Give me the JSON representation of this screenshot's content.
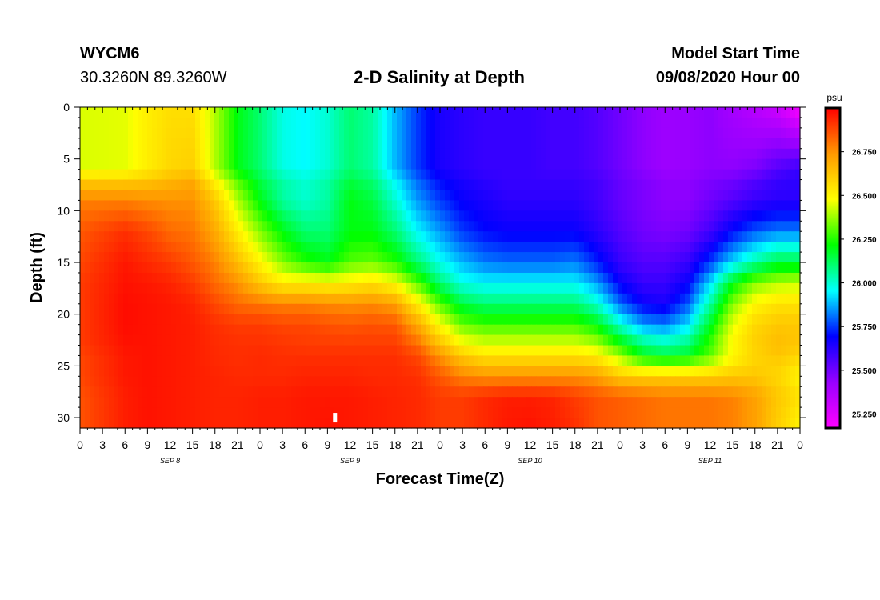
{
  "header": {
    "station": "WYCM6",
    "coordinates": "30.3260N 89.3260W",
    "title": "2-D Salinity at Depth",
    "model_start_label": "Model Start Time",
    "model_start_value": "09/08/2020 Hour 00"
  },
  "chart_data": {
    "type": "heatmap",
    "title": "2-D Salinity at Depth",
    "xlabel": "Forecast Time(Z)",
    "ylabel": "Depth (ft)",
    "x_unit": "hours from model start",
    "xlim": [
      0,
      96
    ],
    "ylim": [
      0,
      31
    ],
    "y_inverted": true,
    "x_tick_values": [
      0,
      3,
      6,
      9,
      12,
      15,
      18,
      21,
      24,
      27,
      30,
      33,
      36,
      39,
      42,
      45,
      48,
      51,
      54,
      57,
      60,
      63,
      66,
      69,
      72,
      75,
      78,
      81,
      84,
      87,
      90,
      93,
      96
    ],
    "x_tick_labels": [
      "0",
      "3",
      "6",
      "9",
      "12",
      "15",
      "18",
      "21",
      "0",
      "3",
      "6",
      "9",
      "12",
      "15",
      "18",
      "21",
      "0",
      "3",
      "6",
      "9",
      "12",
      "15",
      "18",
      "21",
      "0",
      "3",
      "6",
      "9",
      "12",
      "15",
      "18",
      "21",
      "0"
    ],
    "date_labels": [
      {
        "x": 12,
        "text": "SEP 8"
      },
      {
        "x": 36,
        "text": "SEP 9"
      },
      {
        "x": 60,
        "text": "SEP 10"
      },
      {
        "x": 84,
        "text": "SEP 11"
      }
    ],
    "y_ticks": [
      0,
      5,
      10,
      15,
      20,
      25,
      30
    ],
    "colorbar": {
      "unit": "psu",
      "range": [
        25.17,
        27.0
      ],
      "ticks": [
        25.25,
        25.5,
        25.75,
        26.0,
        26.25,
        26.5,
        26.75
      ],
      "tick_labels": [
        "25.250",
        "25.500",
        "25.750",
        "26.000",
        "26.250",
        "26.500",
        "26.750"
      ],
      "colors": [
        "#ff00ff",
        "#9900ff",
        "#0000ff",
        "#00ffff",
        "#00ff00",
        "#ffff00",
        "#ff9900",
        "#ff0000"
      ]
    },
    "marker": {
      "x": 34,
      "y": 30
    },
    "grid_values": {
      "times": [
        0,
        6,
        9,
        12,
        15,
        18,
        21,
        24,
        27,
        30,
        33,
        36,
        39,
        42,
        45,
        48,
        51,
        54,
        57,
        60,
        63,
        66,
        69,
        72,
        75,
        78,
        81,
        84,
        87,
        90,
        93,
        96
      ],
      "depths": [
        0,
        6,
        7,
        9,
        12,
        15,
        17,
        19,
        21,
        23,
        24,
        26,
        28,
        31
      ],
      "salinity": [
        [
          26.44,
          26.45,
          26.52,
          26.56,
          26.56,
          26.4,
          26.2,
          26.1,
          25.98,
          25.95,
          26.0,
          26.1,
          26.05,
          25.88,
          25.75,
          25.65,
          25.62,
          25.6,
          25.6,
          25.6,
          25.58,
          25.58,
          25.55,
          25.5,
          25.45,
          25.42,
          25.43,
          25.45,
          25.4,
          25.35,
          25.3,
          25.18
        ],
        [
          26.44,
          26.45,
          26.52,
          26.58,
          26.6,
          26.4,
          26.2,
          26.1,
          25.98,
          25.95,
          26.0,
          26.1,
          26.05,
          25.88,
          25.75,
          25.65,
          25.62,
          25.6,
          25.6,
          25.6,
          25.58,
          25.58,
          25.55,
          25.5,
          25.45,
          25.42,
          25.43,
          25.45,
          25.45,
          25.48,
          25.55,
          25.6
        ],
        [
          26.6,
          26.6,
          26.62,
          26.66,
          26.7,
          26.5,
          26.3,
          26.15,
          26.05,
          26.0,
          26.05,
          26.15,
          26.1,
          25.95,
          25.8,
          25.7,
          25.65,
          25.62,
          25.6,
          25.6,
          25.6,
          25.6,
          25.58,
          25.52,
          25.48,
          25.45,
          25.45,
          25.48,
          25.5,
          25.55,
          25.6,
          25.62
        ],
        [
          26.78,
          26.78,
          26.76,
          26.75,
          26.75,
          26.62,
          26.4,
          26.2,
          26.05,
          26.0,
          26.05,
          26.2,
          26.15,
          26.0,
          25.85,
          25.75,
          25.68,
          25.65,
          25.62,
          25.62,
          25.62,
          25.62,
          25.58,
          25.52,
          25.48,
          25.45,
          25.45,
          25.5,
          25.55,
          25.6,
          25.62,
          25.62
        ],
        [
          26.85,
          26.92,
          26.88,
          26.82,
          26.8,
          26.7,
          26.52,
          26.35,
          26.2,
          26.1,
          26.1,
          26.2,
          26.2,
          26.1,
          25.95,
          25.85,
          25.75,
          25.7,
          25.68,
          25.68,
          25.68,
          25.68,
          25.62,
          25.55,
          25.5,
          25.48,
          25.5,
          25.58,
          25.7,
          25.78,
          25.82,
          25.82
        ],
        [
          26.88,
          26.96,
          26.93,
          26.9,
          26.85,
          26.78,
          26.65,
          26.5,
          26.35,
          26.25,
          26.2,
          26.3,
          26.32,
          26.25,
          26.1,
          25.97,
          25.88,
          25.82,
          25.8,
          25.8,
          25.8,
          25.82,
          25.72,
          25.6,
          25.55,
          25.55,
          25.6,
          25.75,
          25.92,
          26.05,
          26.15,
          26.15
        ],
        [
          26.9,
          26.97,
          26.96,
          26.94,
          26.9,
          26.82,
          26.75,
          26.62,
          26.52,
          26.52,
          26.5,
          26.52,
          26.55,
          26.48,
          26.3,
          26.1,
          25.98,
          25.95,
          25.95,
          25.95,
          25.95,
          25.95,
          25.85,
          25.68,
          25.6,
          25.6,
          25.68,
          25.92,
          26.2,
          26.35,
          26.4,
          26.42
        ],
        [
          26.9,
          26.98,
          26.97,
          26.96,
          26.94,
          26.88,
          26.82,
          26.8,
          26.78,
          26.78,
          26.76,
          26.75,
          26.76,
          26.72,
          26.52,
          26.3,
          26.15,
          26.1,
          26.1,
          26.1,
          26.1,
          26.1,
          26.0,
          25.8,
          25.68,
          25.65,
          25.78,
          26.05,
          26.35,
          26.5,
          26.55,
          26.55
        ],
        [
          26.9,
          26.98,
          26.97,
          26.96,
          26.95,
          26.92,
          26.9,
          26.9,
          26.88,
          26.88,
          26.86,
          26.85,
          26.86,
          26.85,
          26.7,
          26.48,
          26.32,
          26.28,
          26.28,
          26.28,
          26.28,
          26.28,
          26.2,
          26.0,
          25.85,
          25.82,
          25.92,
          26.18,
          26.45,
          26.58,
          26.62,
          26.62
        ],
        [
          26.9,
          26.97,
          26.97,
          26.96,
          26.95,
          26.93,
          26.92,
          26.92,
          26.91,
          26.9,
          26.9,
          26.9,
          26.9,
          26.9,
          26.82,
          26.65,
          26.5,
          26.45,
          26.45,
          26.45,
          26.45,
          26.45,
          26.4,
          26.25,
          26.1,
          26.05,
          26.1,
          26.28,
          26.5,
          26.6,
          26.65,
          26.62
        ],
        [
          26.88,
          26.96,
          26.97,
          26.96,
          26.95,
          26.93,
          26.92,
          26.93,
          26.92,
          26.92,
          26.92,
          26.92,
          26.92,
          26.92,
          26.88,
          26.75,
          26.62,
          26.55,
          26.55,
          26.55,
          26.55,
          26.55,
          26.52,
          26.38,
          26.2,
          26.15,
          26.18,
          26.3,
          26.48,
          26.58,
          26.62,
          26.58
        ],
        [
          26.88,
          26.96,
          26.97,
          26.96,
          26.95,
          26.94,
          26.93,
          26.93,
          26.93,
          26.94,
          26.94,
          26.94,
          26.93,
          26.93,
          26.92,
          26.85,
          26.78,
          26.75,
          26.75,
          26.75,
          26.75,
          26.75,
          26.72,
          26.62,
          26.6,
          26.6,
          26.6,
          26.6,
          26.62,
          26.62,
          26.58,
          26.5
        ],
        [
          26.86,
          26.95,
          26.97,
          26.96,
          26.95,
          26.94,
          26.94,
          26.95,
          26.95,
          26.96,
          26.96,
          26.96,
          26.95,
          26.94,
          26.93,
          26.9,
          26.9,
          26.93,
          26.95,
          26.95,
          26.94,
          26.9,
          26.86,
          26.84,
          26.82,
          26.8,
          26.8,
          26.8,
          26.78,
          26.72,
          26.62,
          26.55
        ],
        [
          26.86,
          26.95,
          26.97,
          26.96,
          26.95,
          26.94,
          26.94,
          26.95,
          26.95,
          26.96,
          26.97,
          26.96,
          26.95,
          26.94,
          26.93,
          26.9,
          26.9,
          26.93,
          26.96,
          26.97,
          26.95,
          26.92,
          26.86,
          26.84,
          26.82,
          26.8,
          26.8,
          26.8,
          26.78,
          26.72,
          26.6,
          26.5
        ]
      ]
    }
  }
}
